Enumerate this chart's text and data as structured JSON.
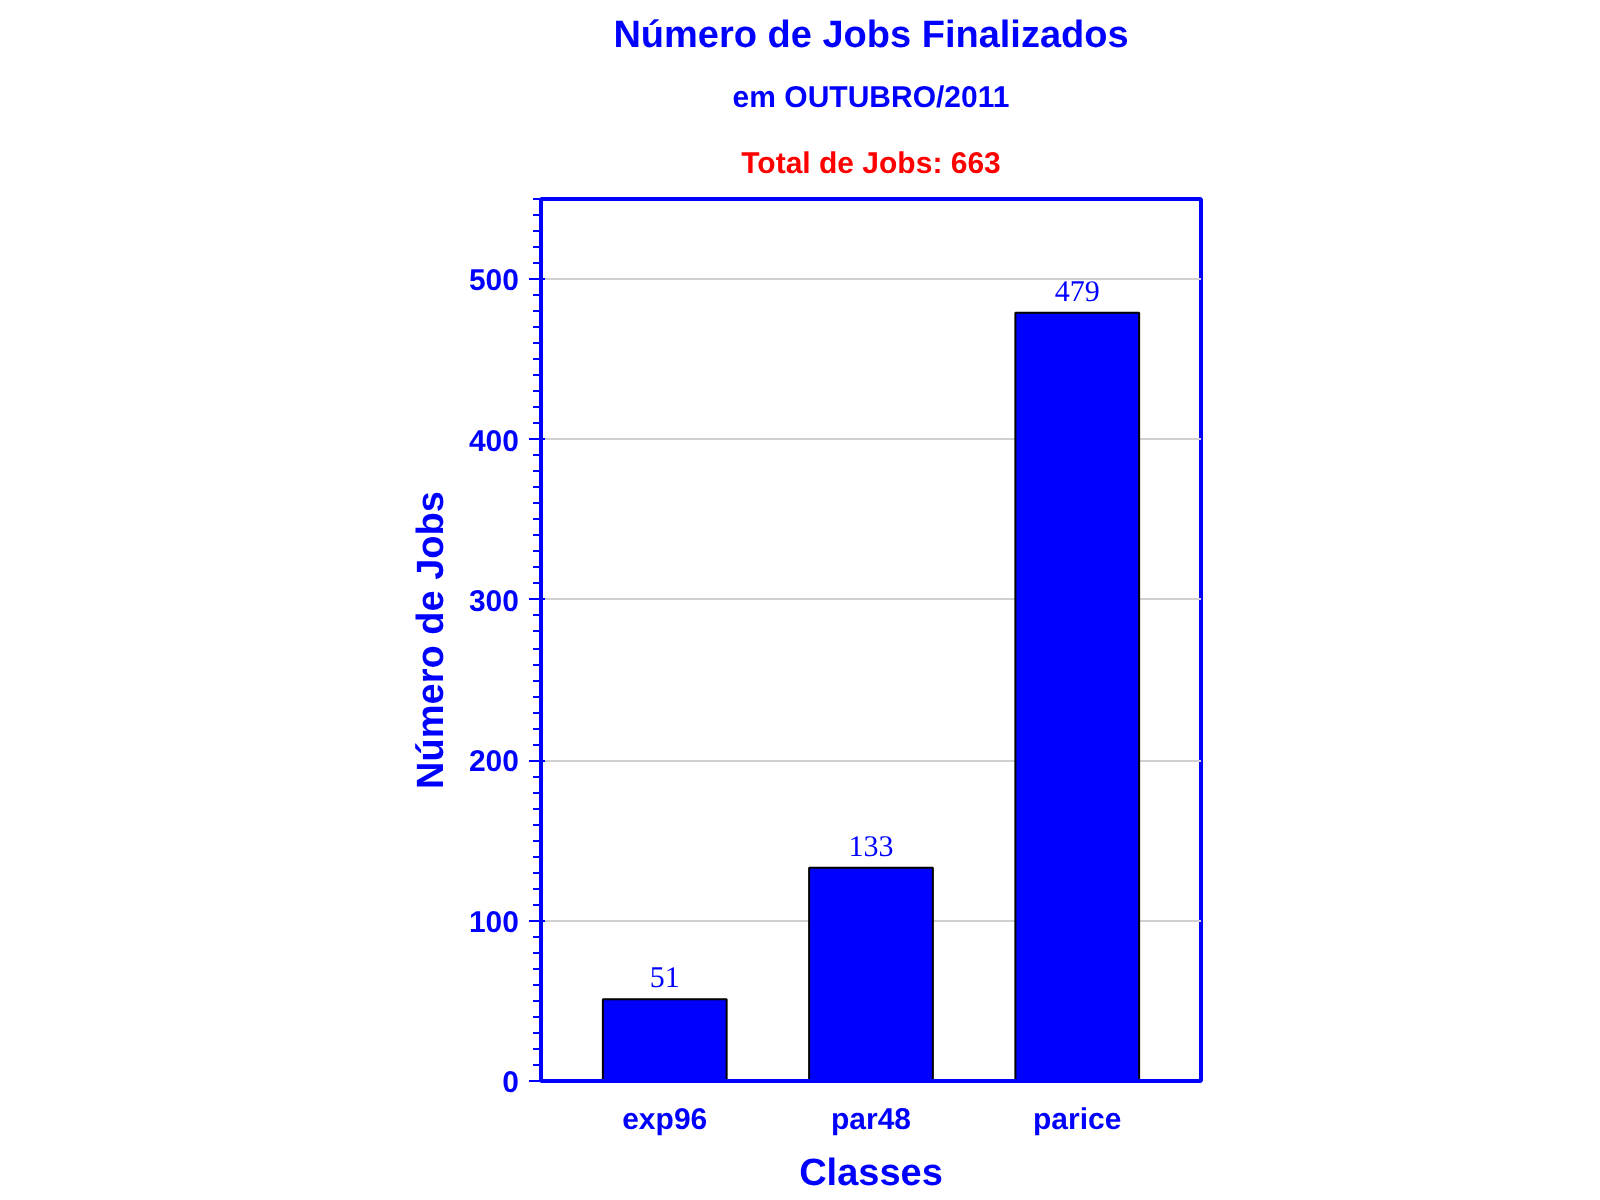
{
  "chart_data": {
    "type": "bar",
    "title": "Número de Jobs Finalizados",
    "subtitle": "em OUTUBRO/2011",
    "annotations": [
      "Total de Jobs: 663"
    ],
    "xlabel": "Classes",
    "ylabel": "Número de Jobs",
    "categories": [
      "exp96",
      "par48",
      "parice"
    ],
    "values": [
      51,
      133,
      479
    ],
    "color": "#0000ff",
    "ylim": [
      0,
      550
    ],
    "yticks": [
      0,
      100,
      200,
      300,
      400,
      500
    ],
    "grid": "y",
    "data_labels": true
  }
}
